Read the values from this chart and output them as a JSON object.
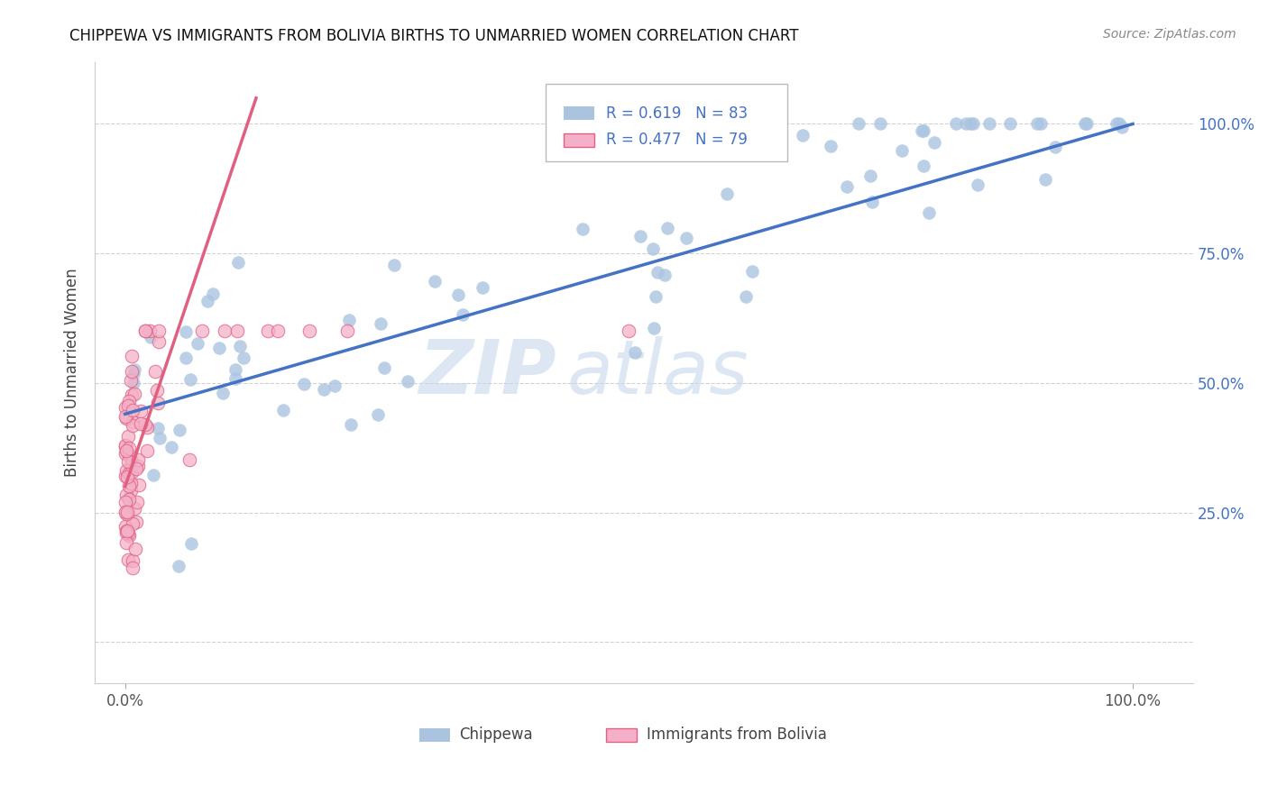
{
  "title": "CHIPPEWA VS IMMIGRANTS FROM BOLIVIA BIRTHS TO UNMARRIED WOMEN CORRELATION CHART",
  "source": "Source: ZipAtlas.com",
  "ylabel": "Births to Unmarried Women",
  "legend_chippewa": "Chippewa",
  "legend_bolivia": "Immigrants from Bolivia",
  "chippewa_R": "0.619",
  "chippewa_N": "83",
  "bolivia_R": "0.477",
  "bolivia_N": "79",
  "chippewa_color": "#aac4e0",
  "chippewa_line_color": "#4472c4",
  "bolivia_color": "#f4b0c8",
  "bolivia_line_color": "#e06080",
  "watermark1": "ZIP",
  "watermark2": "atlas",
  "ytick_values": [
    0.0,
    0.25,
    0.5,
    0.75,
    1.0
  ],
  "ytick_labels": [
    "",
    "25.0%",
    "50.0%",
    "75.0%",
    "100.0%"
  ],
  "xtick_values": [
    0.0,
    1.0
  ],
  "xtick_labels": [
    "0.0%",
    "100.0%"
  ],
  "xlim": [
    -0.03,
    1.06
  ],
  "ylim": [
    -0.08,
    1.12
  ],
  "chippewa_line_x0": 0.0,
  "chippewa_line_y0": 0.44,
  "chippewa_line_x1": 1.0,
  "chippewa_line_y1": 1.0,
  "bolivia_line_x0": 0.0,
  "bolivia_line_y0": 0.3,
  "bolivia_line_x1": 0.13,
  "bolivia_line_y1": 1.05
}
